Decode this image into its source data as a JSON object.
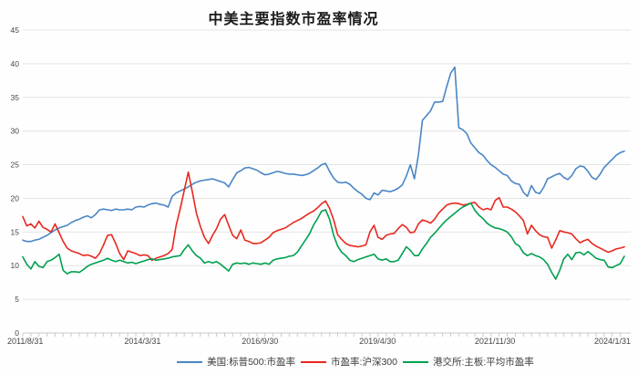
{
  "title": "中美主要指数市盈率情况",
  "chart_data": {
    "type": "line",
    "title": "中美主要指数市盈率情况",
    "x_tick_labels": [
      "2011/8/31",
      "2014/3/31",
      "2016/9/30",
      "2019/4/30",
      "2021/11/30",
      "2024/1/31"
    ],
    "y_tick_labels": [
      "0",
      "5",
      "10",
      "15",
      "20",
      "25",
      "30",
      "35",
      "40",
      "45"
    ],
    "ylim": [
      0,
      45
    ],
    "grid": true,
    "legend_position": "bottom",
    "x_unit": "month",
    "series": [
      {
        "name": "美国:标普500:市盈率",
        "color": "#4a86c6",
        "values": [
          13.8,
          13.6,
          13.6,
          13.8,
          13.9,
          14.2,
          14.5,
          14.9,
          15.3,
          15.6,
          15.8,
          16.0,
          16.4,
          16.7,
          16.9,
          17.2,
          17.4,
          17.1,
          17.6,
          18.3,
          18.4,
          18.3,
          18.2,
          18.4,
          18.3,
          18.3,
          18.4,
          18.3,
          18.7,
          18.8,
          18.7,
          19.0,
          19.2,
          19.3,
          19.1,
          19.0,
          18.7,
          20.3,
          20.8,
          21.1,
          21.4,
          21.7,
          22.1,
          22.4,
          22.6,
          22.7,
          22.8,
          22.9,
          22.7,
          22.5,
          22.3,
          21.7,
          22.8,
          23.8,
          24.1,
          24.5,
          24.6,
          24.4,
          24.2,
          23.8,
          23.5,
          23.6,
          23.8,
          24.0,
          23.9,
          23.7,
          23.6,
          23.6,
          23.5,
          23.4,
          23.5,
          23.7,
          24.1,
          24.5,
          25.0,
          25.2,
          24.0,
          23.0,
          22.4,
          22.3,
          22.4,
          22.1,
          21.5,
          21.0,
          20.6,
          20.0,
          19.8,
          20.8,
          20.5,
          21.2,
          21.1,
          21.0,
          21.2,
          21.5,
          22.0,
          23.3,
          25.0,
          22.9,
          26.5,
          31.6,
          32.3,
          33.0,
          34.3,
          34.3,
          34.4,
          36.6,
          38.6,
          39.5,
          30.5,
          30.2,
          29.6,
          28.2,
          27.5,
          26.8,
          26.4,
          25.6,
          25.0,
          24.6,
          24.1,
          23.6,
          23.4,
          22.6,
          22.2,
          22.1,
          20.9,
          20.3,
          21.9,
          20.9,
          20.7,
          21.6,
          22.9,
          23.2,
          23.5,
          23.7,
          23.1,
          22.8,
          23.4,
          24.4,
          24.8,
          24.7,
          24.0,
          23.1,
          22.8,
          23.6,
          24.6,
          25.2,
          25.8,
          26.4,
          26.8,
          27.0
        ]
      },
      {
        "name": "市盈率:沪深300",
        "color": "#e8281e",
        "values": [
          17.3,
          15.9,
          16.2,
          15.6,
          16.6,
          15.7,
          15.4,
          15.0,
          16.2,
          14.9,
          13.6,
          12.6,
          12.2,
          12.0,
          11.8,
          11.5,
          11.6,
          11.4,
          11.1,
          11.8,
          13.1,
          14.5,
          14.6,
          13.3,
          11.8,
          10.9,
          12.2,
          12.0,
          11.8,
          11.5,
          11.6,
          11.5,
          10.8,
          11.1,
          11.3,
          11.5,
          11.8,
          12.4,
          16.0,
          18.5,
          21.2,
          23.9,
          21.0,
          17.8,
          15.8,
          14.2,
          13.3,
          14.5,
          15.5,
          16.9,
          17.6,
          16.0,
          14.5,
          14.0,
          15.3,
          13.8,
          13.6,
          13.3,
          13.3,
          13.4,
          13.8,
          14.2,
          14.9,
          15.2,
          15.4,
          15.6,
          16.0,
          16.4,
          16.7,
          17.0,
          17.4,
          17.8,
          18.1,
          18.6,
          19.2,
          19.6,
          18.5,
          16.8,
          14.6,
          13.9,
          13.3,
          13.0,
          12.9,
          12.8,
          12.9,
          13.1,
          15.0,
          16.0,
          14.2,
          13.9,
          14.5,
          14.7,
          14.8,
          15.5,
          16.1,
          15.7,
          14.9,
          15.0,
          16.2,
          16.8,
          16.6,
          16.3,
          16.9,
          17.8,
          18.4,
          19.0,
          19.2,
          19.3,
          19.2,
          19.0,
          19.1,
          19.3,
          19.4,
          18.7,
          18.3,
          18.5,
          18.3,
          19.7,
          20.1,
          18.7,
          18.7,
          18.4,
          18.0,
          17.4,
          16.7,
          14.7,
          16.0,
          15.2,
          14.6,
          14.3,
          14.2,
          12.6,
          13.8,
          15.2,
          15.0,
          14.9,
          14.7,
          14.0,
          13.4,
          13.7,
          13.9,
          13.3,
          12.9,
          12.6,
          12.3,
          12.0,
          12.2,
          12.5,
          12.6,
          12.8
        ]
      },
      {
        "name": "港交所:主板:平均市盈率",
        "color": "#00a050",
        "values": [
          11.3,
          10.2,
          9.5,
          10.6,
          9.9,
          9.7,
          10.6,
          10.8,
          11.2,
          11.7,
          9.3,
          8.8,
          9.1,
          9.1,
          9.0,
          9.4,
          9.9,
          10.2,
          10.4,
          10.6,
          10.8,
          11.1,
          10.8,
          10.6,
          10.8,
          10.6,
          10.4,
          10.5,
          10.3,
          10.5,
          10.7,
          10.9,
          11.0,
          10.8,
          10.9,
          11.0,
          11.1,
          11.3,
          11.4,
          11.5,
          12.4,
          13.1,
          12.2,
          11.5,
          11.1,
          10.4,
          10.6,
          10.4,
          10.6,
          10.2,
          9.7,
          9.2,
          10.2,
          10.4,
          10.3,
          10.4,
          10.2,
          10.4,
          10.3,
          10.2,
          10.4,
          10.2,
          10.8,
          11.0,
          11.1,
          11.2,
          11.4,
          11.5,
          12.0,
          12.9,
          13.8,
          14.7,
          16.0,
          17.0,
          18.1,
          18.3,
          16.9,
          14.5,
          12.9,
          12.0,
          11.5,
          10.8,
          10.6,
          10.9,
          11.1,
          11.3,
          11.5,
          11.7,
          11.0,
          10.8,
          11.0,
          10.6,
          10.6,
          10.8,
          11.8,
          12.8,
          12.3,
          11.5,
          11.5,
          12.5,
          13.3,
          14.2,
          14.8,
          15.5,
          16.2,
          16.8,
          17.3,
          17.8,
          18.3,
          18.7,
          19.0,
          19.3,
          18.2,
          17.5,
          17.0,
          16.3,
          15.9,
          15.6,
          15.5,
          15.3,
          15.0,
          14.3,
          13.3,
          12.9,
          11.9,
          11.5,
          11.8,
          11.5,
          11.3,
          10.9,
          10.2,
          9.0,
          8.0,
          9.3,
          11.0,
          11.7,
          10.9,
          11.9,
          12.0,
          11.6,
          12.1,
          11.6,
          11.1,
          10.9,
          10.8,
          9.8,
          9.7,
          10.0,
          10.3,
          11.4
        ]
      }
    ],
    "style": {
      "grid_color": "#e4e4e4",
      "axis_color": "#c9c9c9",
      "tick_label_color": "#454545",
      "background": "#fefefe"
    }
  }
}
